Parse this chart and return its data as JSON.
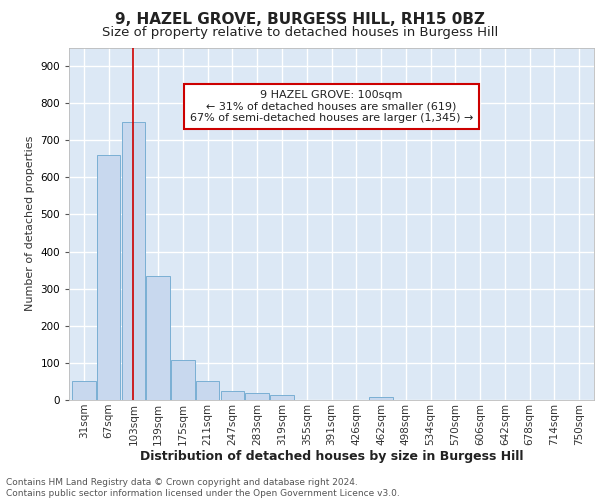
{
  "title1": "9, HAZEL GROVE, BURGESS HILL, RH15 0BZ",
  "title2": "Size of property relative to detached houses in Burgess Hill",
  "xlabel": "Distribution of detached houses by size in Burgess Hill",
  "ylabel": "Number of detached properties",
  "footnote1": "Contains HM Land Registry data © Crown copyright and database right 2024.",
  "footnote2": "Contains public sector information licensed under the Open Government Licence v3.0.",
  "bin_labels": [
    "31sqm",
    "67sqm",
    "103sqm",
    "139sqm",
    "175sqm",
    "211sqm",
    "247sqm",
    "283sqm",
    "319sqm",
    "355sqm",
    "391sqm",
    "426sqm",
    "462sqm",
    "498sqm",
    "534sqm",
    "570sqm",
    "606sqm",
    "642sqm",
    "678sqm",
    "714sqm",
    "750sqm"
  ],
  "bar_values": [
    50,
    660,
    750,
    335,
    108,
    50,
    25,
    18,
    13,
    0,
    0,
    0,
    9,
    0,
    0,
    0,
    0,
    0,
    0,
    0,
    0
  ],
  "bar_color": "#c8d8ee",
  "bar_edge_color": "#7aafd4",
  "highlight_x_label": "103sqm",
  "highlight_line_color": "#cc0000",
  "annotation_text": "9 HAZEL GROVE: 100sqm\n← 31% of detached houses are smaller (619)\n67% of semi-detached houses are larger (1,345) →",
  "annotation_box_color": "#ffffff",
  "annotation_box_edge_color": "#cc0000",
  "ylim": [
    0,
    950
  ],
  "yticks": [
    0,
    100,
    200,
    300,
    400,
    500,
    600,
    700,
    800,
    900
  ],
  "background_color": "#dce8f5",
  "grid_color": "#ffffff",
  "title1_fontsize": 11,
  "title2_fontsize": 9.5,
  "axis_label_fontsize": 9,
  "tick_fontsize": 7.5,
  "footnote_fontsize": 6.5,
  "ylabel_fontsize": 8
}
